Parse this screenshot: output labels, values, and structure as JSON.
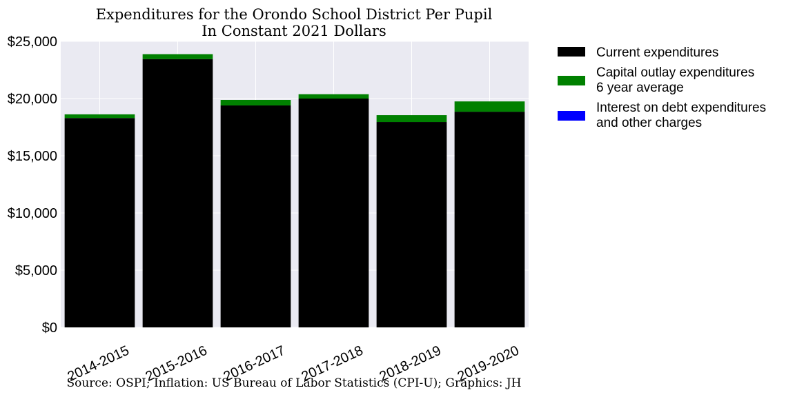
{
  "chart_data": {
    "type": "bar",
    "stacked": true,
    "title": "Expenditures for the Orondo School District Per Pupil",
    "subtitle": "In Constant 2021 Dollars",
    "source": "Source: OSPI; Inflation: US Bureau of Labor Statistics (CPI-U); Graphics: JH",
    "xlabel": "",
    "ylabel": "",
    "categories": [
      "2014-2015",
      "2015-2016",
      "2016-2017",
      "2017-2018",
      "2018-2019",
      "2019-2020"
    ],
    "series": [
      {
        "name": "Current expenditures",
        "color": "#000000",
        "values": [
          18300,
          23450,
          19400,
          20000,
          17950,
          18850
        ]
      },
      {
        "name": "Capital outlay expenditures\n6 year average",
        "color": "#008000",
        "values": [
          320,
          430,
          480,
          380,
          600,
          900
        ]
      },
      {
        "name": "Interest on debt expenditures\nand other charges",
        "color": "#0000ff",
        "values": [
          0,
          0,
          0,
          0,
          0,
          0
        ]
      }
    ],
    "ylim": [
      0,
      25000
    ],
    "yticks": [
      0,
      5000,
      10000,
      15000,
      20000,
      25000
    ],
    "ytick_labels": [
      "$0",
      "$5,000",
      "$10,000",
      "$15,000",
      "$20,000",
      "$25,000"
    ],
    "grid": true,
    "plot_background": "#eaeaf2",
    "legend_position": "outside-right"
  }
}
